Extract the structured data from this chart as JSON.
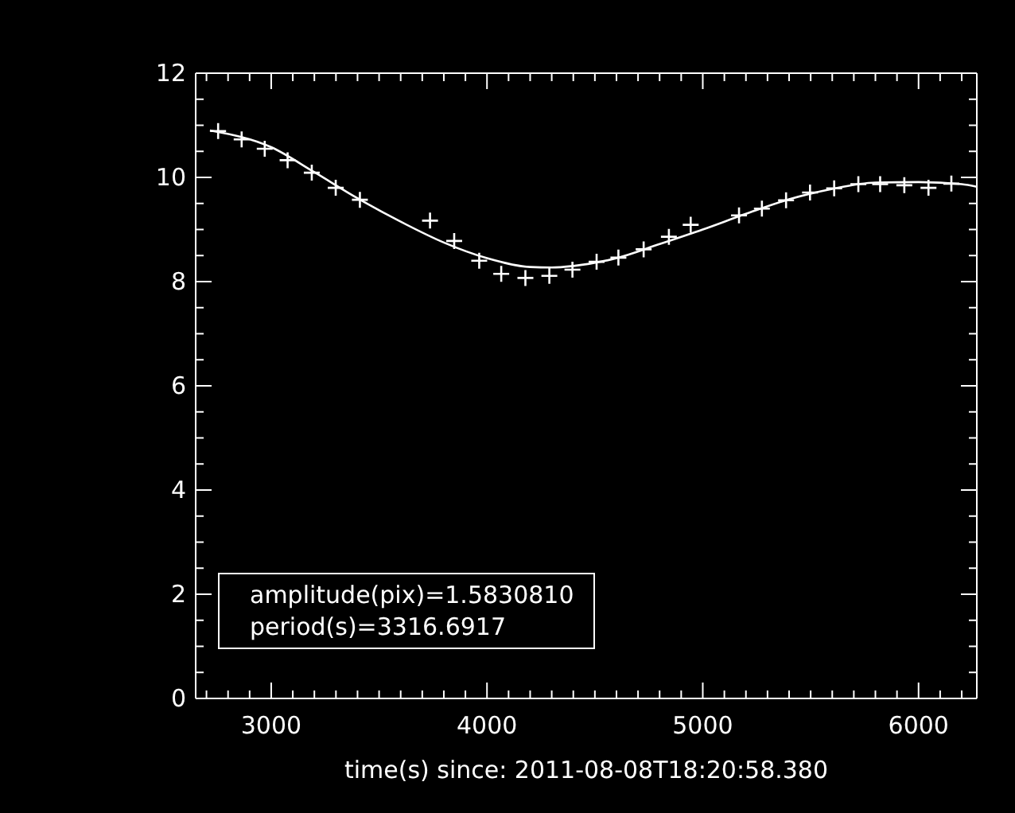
{
  "chart_data": {
    "type": "scatter",
    "xlabel": "time(s) since: 2011-08-08T18:20:58.380",
    "xlim": [
      2650,
      6270
    ],
    "ylim": [
      0,
      12
    ],
    "xticks": [
      {
        "value": 2700,
        "label": null
      },
      {
        "value": 2800,
        "label": null
      },
      {
        "value": 2900,
        "label": null
      },
      3000,
      {
        "value": 3100,
        "label": null
      },
      {
        "value": 3200,
        "label": null
      },
      {
        "value": 3300,
        "label": null
      },
      {
        "value": 3400,
        "label": null
      },
      {
        "value": 3500,
        "label": null
      },
      {
        "value": 3600,
        "label": null
      },
      {
        "value": 3700,
        "label": null
      },
      {
        "value": 3800,
        "label": null
      },
      {
        "value": 3900,
        "label": null
      },
      4000,
      {
        "value": 4100,
        "label": null
      },
      {
        "value": 4200,
        "label": null
      },
      {
        "value": 4300,
        "label": null
      },
      {
        "value": 4400,
        "label": null
      },
      {
        "value": 4500,
        "label": null
      },
      {
        "value": 4600,
        "label": null
      },
      {
        "value": 4700,
        "label": null
      },
      {
        "value": 4800,
        "label": null
      },
      {
        "value": 4900,
        "label": null
      },
      5000,
      {
        "value": 5100,
        "label": null
      },
      {
        "value": 5200,
        "label": null
      },
      {
        "value": 5300,
        "label": null
      },
      {
        "value": 5400,
        "label": null
      },
      {
        "value": 5500,
        "label": null
      },
      {
        "value": 5600,
        "label": null
      },
      {
        "value": 5700,
        "label": null
      },
      {
        "value": 5800,
        "label": null
      },
      {
        "value": 5900,
        "label": null
      },
      6000,
      {
        "value": 6100,
        "label": null
      },
      {
        "value": 6200,
        "label": null
      }
    ],
    "yticks": [
      0,
      {
        "value": 0.5,
        "label": null
      },
      {
        "value": 1,
        "label": null
      },
      {
        "value": 1.5,
        "label": null
      },
      2,
      {
        "value": 2.5,
        "label": null
      },
      {
        "value": 3,
        "label": null
      },
      {
        "value": 3.5,
        "label": null
      },
      4,
      {
        "value": 4.5,
        "label": null
      },
      {
        "value": 5,
        "label": null
      },
      {
        "value": 5.5,
        "label": null
      },
      6,
      {
        "value": 6.5,
        "label": null
      },
      {
        "value": 7,
        "label": null
      },
      {
        "value": 7.5,
        "label": null
      },
      8,
      {
        "value": 8.5,
        "label": null
      },
      {
        "value": 9,
        "label": null
      },
      {
        "value": 9.5,
        "label": null
      },
      10,
      {
        "value": 10.5,
        "label": null
      },
      {
        "value": 11,
        "label": null
      },
      {
        "value": 11.5,
        "label": null
      },
      12
    ],
    "annotations": [
      "amplitude(pix)=1.5830810",
      "period(s)=3316.6917"
    ],
    "series": [
      {
        "color": "#ffffff",
        "marker": "cross",
        "x": [
          2754,
          2863,
          2970,
          3076,
          3188,
          3299,
          3411,
          3736,
          3848,
          3964,
          4066,
          4178,
          4289,
          4396,
          4508,
          4609,
          4726,
          4843,
          4944,
          5168,
          5274,
          5386,
          5497,
          5609,
          5721,
          5822,
          5934,
          6046,
          6152
        ],
        "values": [
          10.89,
          10.73,
          10.55,
          10.33,
          10.09,
          9.8,
          9.57,
          9.17,
          8.78,
          8.4,
          8.15,
          8.07,
          8.11,
          8.23,
          8.38,
          8.46,
          8.62,
          8.86,
          9.09,
          9.27,
          9.4,
          9.56,
          9.71,
          9.79,
          9.87,
          9.87,
          9.85,
          9.8,
          9.88
        ]
      },
      {
        "type": "line",
        "color": "#ffffff",
        "marker": "none",
        "x": [
          2716,
          3000,
          3200,
          3400,
          3600,
          3800,
          4000,
          4200,
          4300,
          4400,
          4600,
          4800,
          5000,
          5200,
          5400,
          5600,
          5800,
          6000,
          6200,
          6270
        ],
        "values": [
          10.9,
          10.58,
          10.1,
          9.6,
          9.15,
          8.75,
          8.45,
          8.28,
          8.27,
          8.3,
          8.45,
          8.72,
          9.0,
          9.3,
          9.58,
          9.78,
          9.9,
          9.91,
          9.87,
          9.82
        ]
      }
    ]
  }
}
